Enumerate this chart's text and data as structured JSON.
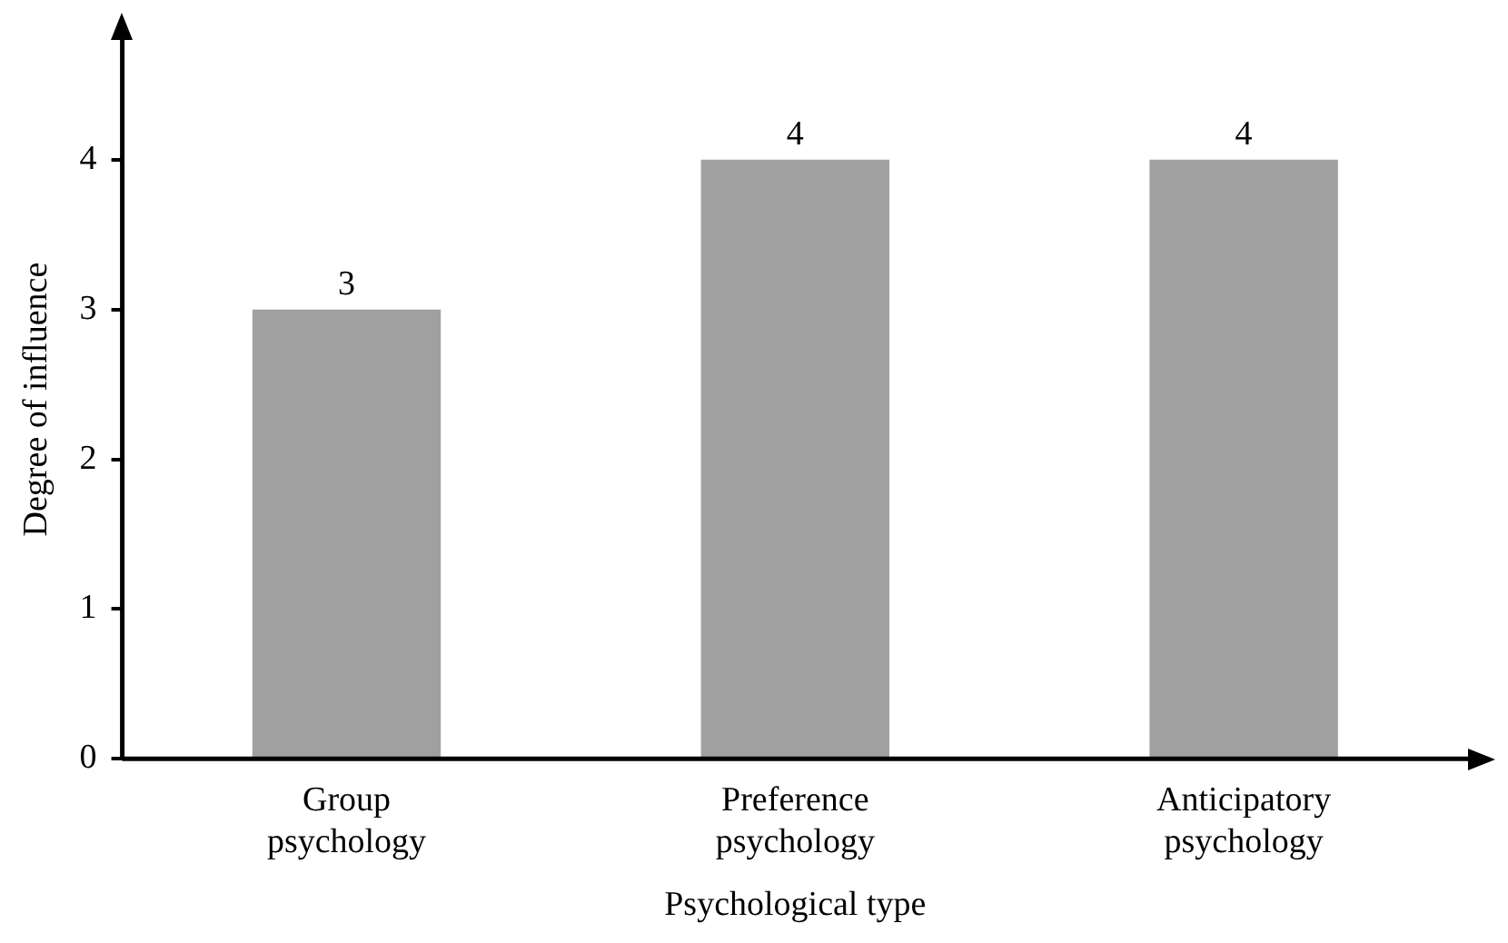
{
  "chart_data": {
    "type": "bar",
    "xlabel": "Psychological type",
    "ylabel": "Degree of influence",
    "categories": [
      "Group psychology",
      "Preference psychology",
      "Anticipatory psychology"
    ],
    "values": [
      3,
      4,
      4
    ],
    "color": "#a0a0a0",
    "ylim": [
      0,
      4.8
    ],
    "yticks": [
      0,
      1,
      2,
      3,
      4
    ],
    "grid": false,
    "legend": false,
    "data_labels": true
  }
}
